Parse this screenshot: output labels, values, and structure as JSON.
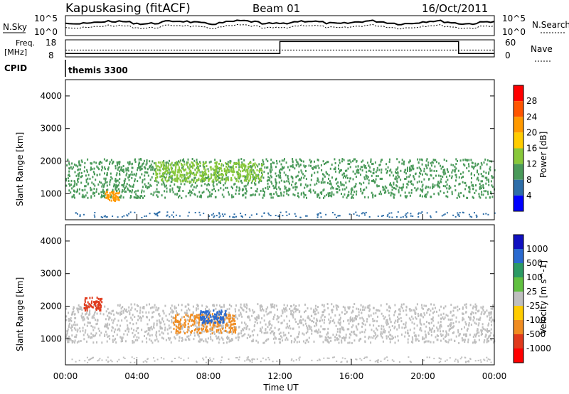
{
  "header": {
    "site": "Kapuskasing (fitACF)",
    "beam": "Beam 01",
    "date": "16/Oct/2011"
  },
  "noise_panel": {
    "left_label": "N.Sky",
    "right_label": "N.Search",
    "left_ticks": [
      "10^5",
      "10^0"
    ],
    "right_ticks": [
      "10^5",
      "10^0"
    ]
  },
  "freq_panel": {
    "left_label_top": "Freq.",
    "left_label_unit": "[MHz]",
    "right_label": "Nave",
    "left_ticks": [
      "18",
      "8"
    ],
    "right_ticks": [
      "60",
      "0"
    ]
  },
  "cpid_panel": {
    "label": "CPID",
    "value": "themis 3300"
  },
  "colors": {
    "scatter_blue": "#1f3fcf",
    "scatter_green": "#4c9a6c",
    "velocity_gray": "#bfbfbf",
    "velocity_orange": "#f08c20",
    "velocity_red": "#e0201c",
    "velocity_green": "#2c9a64"
  },
  "chart_data": [
    {
      "type": "heatmap",
      "title": "",
      "xlabel": "Time UT",
      "ylabel": "Slant Range [km]",
      "colorbar_label": "Power [dB]",
      "colorbar_ticks": [
        "28",
        "24",
        "20",
        "16",
        "12",
        "8",
        "4"
      ],
      "colorbar_colors": [
        "#ff0000",
        "#ff5500",
        "#ff9900",
        "#ffcc00",
        "#88c83a",
        "#4a9a5a",
        "#2e6ea8",
        "#0000ff"
      ],
      "x_ticks": [
        "00:00",
        "04:00",
        "08:00",
        "12:00",
        "16:00",
        "20:00",
        "00:00"
      ],
      "y_ticks": [
        "1000",
        "2000",
        "3000",
        "4000"
      ],
      "xlim": [
        0,
        24
      ],
      "ylim": [
        200,
        4500
      ],
      "regions": [
        {
          "t0": 0.0,
          "t1": 24.0,
          "r0": 900,
          "r1": 2100,
          "value": 8
        },
        {
          "t0": 5.0,
          "t1": 11.0,
          "r0": 1400,
          "r1": 2000,
          "value": 14
        },
        {
          "t0": 2.2,
          "t1": 3.0,
          "r0": 800,
          "r1": 1100,
          "value": 22
        }
      ]
    },
    {
      "type": "heatmap",
      "title": "",
      "xlabel": "Time UT",
      "ylabel": "Slant Range [km]",
      "colorbar_label": "Velocity [m s^-1]",
      "colorbar_ticks": [
        "1000",
        "500",
        "100",
        "25",
        "-25",
        "-100",
        "-500",
        "-1000"
      ],
      "colorbar_colors": [
        "#1010c0",
        "#2a6ad0",
        "#2c9a64",
        "#60c040",
        "#bfbfbf",
        "#ffcc00",
        "#f08c20",
        "#e03a1c",
        "#ff0000"
      ],
      "x_ticks": [
        "00:00",
        "04:00",
        "08:00",
        "12:00",
        "16:00",
        "20:00",
        "00:00"
      ],
      "y_ticks": [
        "1000",
        "2000",
        "3000",
        "4000"
      ],
      "xlim": [
        0,
        24
      ],
      "ylim": [
        200,
        4500
      ],
      "regions": [
        {
          "t0": 0.0,
          "t1": 24.0,
          "r0": 900,
          "r1": 2100,
          "value": 0
        },
        {
          "t0": 1.0,
          "t1": 2.0,
          "r0": 1900,
          "r1": 2300,
          "value": -500
        },
        {
          "t0": 6.0,
          "t1": 9.5,
          "r0": 1200,
          "r1": 1800,
          "value": -100
        },
        {
          "t0": 7.5,
          "t1": 9.0,
          "r0": 1500,
          "r1": 1900,
          "value": 500
        }
      ]
    }
  ]
}
